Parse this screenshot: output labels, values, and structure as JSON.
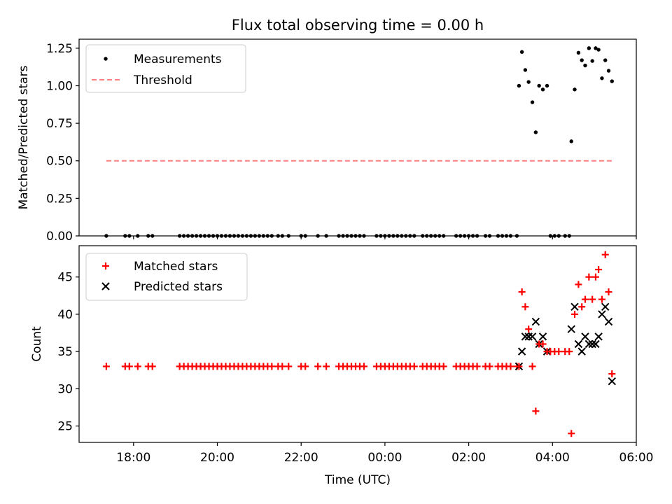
{
  "figure": {
    "title": "Flux total observing time = 0.00 h",
    "xlabel": "Time (UTC)",
    "xticks": [
      {
        "hour": 18,
        "label": "18:00"
      },
      {
        "hour": 20,
        "label": "20:00"
      },
      {
        "hour": 22,
        "label": "22:00"
      },
      {
        "hour": 24,
        "label": "00:00"
      },
      {
        "hour": 26,
        "label": "02:00"
      },
      {
        "hour": 28,
        "label": "04:00"
      },
      {
        "hour": 30,
        "label": "06:00"
      }
    ],
    "xlim": [
      16.7,
      30.0
    ]
  },
  "chart_data": [
    {
      "type": "scatter",
      "ylabel": "Matched/Predicted stars",
      "ylim": [
        0,
        1.31
      ],
      "yticks": [
        0,
        0.25,
        0.5,
        0.75,
        1.0,
        1.25
      ],
      "ytick_labels": [
        "0.00",
        "0.25",
        "0.50",
        "0.75",
        "1.00",
        "1.25"
      ],
      "legend": {
        "position": "upper-left",
        "measurements": "Measurements",
        "threshold": "Threshold"
      },
      "threshold": {
        "value": 0.5,
        "x": [
          17.35,
          29.42
        ],
        "color": "#ff8080"
      },
      "measurements": {
        "color": "#000000",
        "zero_x": [
          17.35,
          17.8,
          17.9,
          18.1,
          18.35,
          18.45,
          19.1,
          19.2,
          19.3,
          19.4,
          19.5,
          19.6,
          19.7,
          19.8,
          19.9,
          20.0,
          20.1,
          20.2,
          20.3,
          20.4,
          20.5,
          20.6,
          20.7,
          20.8,
          20.9,
          21.0,
          21.1,
          21.2,
          21.3,
          21.45,
          21.55,
          21.7,
          22.0,
          22.1,
          22.4,
          22.6,
          22.9,
          23.0,
          23.1,
          23.2,
          23.3,
          23.4,
          23.5,
          23.8,
          23.9,
          24.0,
          24.1,
          24.2,
          24.3,
          24.4,
          24.5,
          24.6,
          24.7,
          24.9,
          25.0,
          25.1,
          25.2,
          25.3,
          25.4,
          25.7,
          25.8,
          25.9,
          26.0,
          26.1,
          26.2,
          26.4,
          26.5,
          26.7,
          26.8,
          26.9,
          27.0,
          27.15,
          27.95,
          28.05,
          28.15,
          28.3,
          28.4
        ],
        "points": [
          {
            "x": 27.2,
            "y": 1.0
          },
          {
            "x": 27.27,
            "y": 1.225
          },
          {
            "x": 27.35,
            "y": 1.105
          },
          {
            "x": 27.43,
            "y": 1.025
          },
          {
            "x": 27.52,
            "y": 0.89
          },
          {
            "x": 27.6,
            "y": 0.69
          },
          {
            "x": 27.68,
            "y": 1.0
          },
          {
            "x": 27.77,
            "y": 0.975
          },
          {
            "x": 27.87,
            "y": 1.0
          },
          {
            "x": 28.45,
            "y": 0.63
          },
          {
            "x": 28.53,
            "y": 0.975
          },
          {
            "x": 28.62,
            "y": 1.22
          },
          {
            "x": 28.7,
            "y": 1.17
          },
          {
            "x": 28.78,
            "y": 1.135
          },
          {
            "x": 28.87,
            "y": 1.25
          },
          {
            "x": 28.95,
            "y": 1.165
          },
          {
            "x": 29.03,
            "y": 1.25
          },
          {
            "x": 29.1,
            "y": 1.24
          },
          {
            "x": 29.18,
            "y": 1.05
          },
          {
            "x": 29.26,
            "y": 1.17
          },
          {
            "x": 29.34,
            "y": 1.1
          },
          {
            "x": 29.42,
            "y": 1.03
          }
        ]
      }
    },
    {
      "type": "scatter",
      "ylabel": "Count",
      "ylim": [
        22.8,
        49.2
      ],
      "yticks": [
        25,
        30,
        35,
        40,
        45
      ],
      "ytick_labels": [
        "25",
        "30",
        "35",
        "40",
        "45"
      ],
      "legend": {
        "position": "upper-left",
        "matched": "Matched stars",
        "predicted": "Predicted stars"
      },
      "matched_color": "#ff0000",
      "predicted_color": "#000000",
      "matched_baseline": {
        "value": 33,
        "x": [
          17.35,
          17.8,
          17.9,
          18.1,
          18.35,
          18.45,
          19.1,
          19.2,
          19.3,
          19.4,
          19.5,
          19.6,
          19.7,
          19.8,
          19.9,
          20.0,
          20.1,
          20.2,
          20.3,
          20.4,
          20.5,
          20.6,
          20.7,
          20.8,
          20.9,
          21.0,
          21.1,
          21.2,
          21.3,
          21.45,
          21.55,
          21.7,
          22.0,
          22.1,
          22.4,
          22.6,
          22.9,
          23.0,
          23.1,
          23.2,
          23.3,
          23.4,
          23.5,
          23.8,
          23.9,
          24.0,
          24.1,
          24.2,
          24.3,
          24.4,
          24.5,
          24.6,
          24.7,
          24.9,
          25.0,
          25.1,
          25.2,
          25.3,
          25.4,
          25.7,
          25.8,
          25.9,
          26.0,
          26.1,
          26.2,
          26.4,
          26.5,
          26.7,
          26.8,
          26.9,
          27.0,
          27.15
        ]
      },
      "matched": [
        {
          "x": 27.2,
          "y": 33
        },
        {
          "x": 27.27,
          "y": 43
        },
        {
          "x": 27.35,
          "y": 41
        },
        {
          "x": 27.43,
          "y": 38
        },
        {
          "x": 27.52,
          "y": 33
        },
        {
          "x": 27.6,
          "y": 27
        },
        {
          "x": 27.68,
          "y": 36
        },
        {
          "x": 27.77,
          "y": 36
        },
        {
          "x": 27.87,
          "y": 35
        },
        {
          "x": 27.95,
          "y": 35
        },
        {
          "x": 28.05,
          "y": 35
        },
        {
          "x": 28.15,
          "y": 35
        },
        {
          "x": 28.3,
          "y": 35
        },
        {
          "x": 28.4,
          "y": 35
        },
        {
          "x": 28.45,
          "y": 24
        },
        {
          "x": 28.53,
          "y": 40
        },
        {
          "x": 28.62,
          "y": 44
        },
        {
          "x": 28.7,
          "y": 41
        },
        {
          "x": 28.78,
          "y": 42
        },
        {
          "x": 28.87,
          "y": 45
        },
        {
          "x": 28.95,
          "y": 42
        },
        {
          "x": 29.03,
          "y": 45
        },
        {
          "x": 29.1,
          "y": 46
        },
        {
          "x": 29.18,
          "y": 42
        },
        {
          "x": 29.26,
          "y": 48
        },
        {
          "x": 29.34,
          "y": 43
        },
        {
          "x": 29.42,
          "y": 32
        }
      ],
      "predicted": [
        {
          "x": 27.2,
          "y": 33
        },
        {
          "x": 27.27,
          "y": 35
        },
        {
          "x": 27.35,
          "y": 37
        },
        {
          "x": 27.43,
          "y": 37
        },
        {
          "x": 27.52,
          "y": 37
        },
        {
          "x": 27.6,
          "y": 39
        },
        {
          "x": 27.68,
          "y": 36
        },
        {
          "x": 27.77,
          "y": 37
        },
        {
          "x": 27.87,
          "y": 35
        },
        {
          "x": 28.45,
          "y": 38
        },
        {
          "x": 28.53,
          "y": 41
        },
        {
          "x": 28.62,
          "y": 36
        },
        {
          "x": 28.7,
          "y": 35
        },
        {
          "x": 28.78,
          "y": 37
        },
        {
          "x": 28.87,
          "y": 36
        },
        {
          "x": 28.95,
          "y": 36
        },
        {
          "x": 29.03,
          "y": 36
        },
        {
          "x": 29.1,
          "y": 37
        },
        {
          "x": 29.18,
          "y": 40
        },
        {
          "x": 29.26,
          "y": 41
        },
        {
          "x": 29.34,
          "y": 39
        },
        {
          "x": 29.42,
          "y": 31
        }
      ]
    }
  ]
}
